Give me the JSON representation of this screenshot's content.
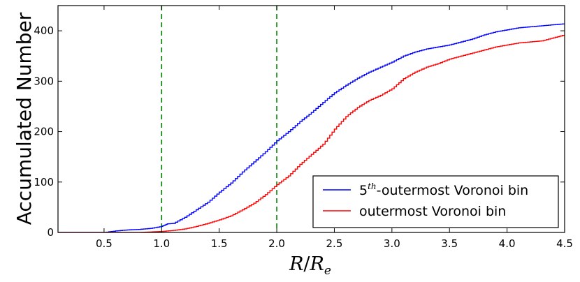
{
  "chart_data": {
    "type": "line",
    "title": "",
    "xlabel": "R/R_e",
    "xlabel_main": "R",
    "xlabel_den": "R",
    "xlabel_sub": "e",
    "ylabel": "Accumulated Number",
    "xlim": [
      0.1,
      4.5
    ],
    "ylim": [
      0,
      450
    ],
    "grid": false,
    "legend_position": "lower-right",
    "x_ticks": [
      0.5,
      1.0,
      1.5,
      2.0,
      2.5,
      3.0,
      3.5,
      4.0,
      4.5
    ],
    "x_tick_labels": [
      "0.5",
      "1.0",
      "1.5",
      "2.0",
      "2.5",
      "3.0",
      "3.5",
      "4.0",
      "4.5"
    ],
    "y_ticks": [
      0,
      100,
      200,
      300,
      400
    ],
    "y_tick_labels": [
      "0",
      "100",
      "200",
      "300",
      "400"
    ],
    "vertical_lines": [
      {
        "x": 1.0,
        "color": "#008000",
        "style": "dashed"
      },
      {
        "x": 2.0,
        "color": "#008000",
        "style": "dashed"
      }
    ],
    "series": [
      {
        "name": "5th-outermost Voronoi bin",
        "legend_base": "5",
        "legend_sup": "th",
        "legend_rest": "-outermost Voronoi bin",
        "color": "#0000ff",
        "x": [
          0.1,
          0.5,
          0.6,
          0.7,
          0.8,
          0.9,
          1.0,
          1.05,
          1.1,
          1.2,
          1.3,
          1.4,
          1.5,
          1.6,
          1.7,
          1.8,
          1.9,
          2.0,
          2.1,
          2.2,
          2.3,
          2.4,
          2.5,
          2.6,
          2.7,
          2.8,
          2.9,
          3.0,
          3.1,
          3.2,
          3.3,
          3.4,
          3.5,
          3.6,
          3.7,
          3.8,
          3.9,
          4.0,
          4.1,
          4.2,
          4.3,
          4.4,
          4.5
        ],
        "values": [
          0,
          0,
          3,
          5,
          6,
          8,
          12,
          17,
          18,
          30,
          45,
          60,
          80,
          98,
          120,
          140,
          160,
          182,
          200,
          220,
          238,
          258,
          277,
          292,
          306,
          318,
          328,
          338,
          350,
          358,
          364,
          368,
          372,
          378,
          384,
          392,
          398,
          402,
          406,
          408,
          410,
          412,
          414
        ]
      },
      {
        "name": "outermost Voronoi bin",
        "legend_base": "outermost Voronoi bin",
        "legend_sup": "",
        "legend_rest": "",
        "color": "#ff0000",
        "x": [
          0.1,
          0.8,
          0.9,
          1.0,
          1.1,
          1.2,
          1.3,
          1.4,
          1.5,
          1.6,
          1.7,
          1.8,
          1.9,
          2.0,
          2.1,
          2.2,
          2.3,
          2.4,
          2.5,
          2.6,
          2.7,
          2.8,
          2.9,
          3.0,
          3.1,
          3.2,
          3.3,
          3.4,
          3.5,
          3.6,
          3.7,
          3.8,
          3.9,
          4.0,
          4.1,
          4.2,
          4.3,
          4.4,
          4.5
        ],
        "values": [
          0,
          0,
          1,
          2,
          4,
          7,
          12,
          18,
          25,
          33,
          45,
          58,
          75,
          95,
          112,
          135,
          155,
          175,
          205,
          230,
          248,
          262,
          272,
          285,
          305,
          318,
          328,
          335,
          344,
          350,
          356,
          362,
          368,
          372,
          376,
          378,
          380,
          386,
          392
        ]
      }
    ]
  }
}
